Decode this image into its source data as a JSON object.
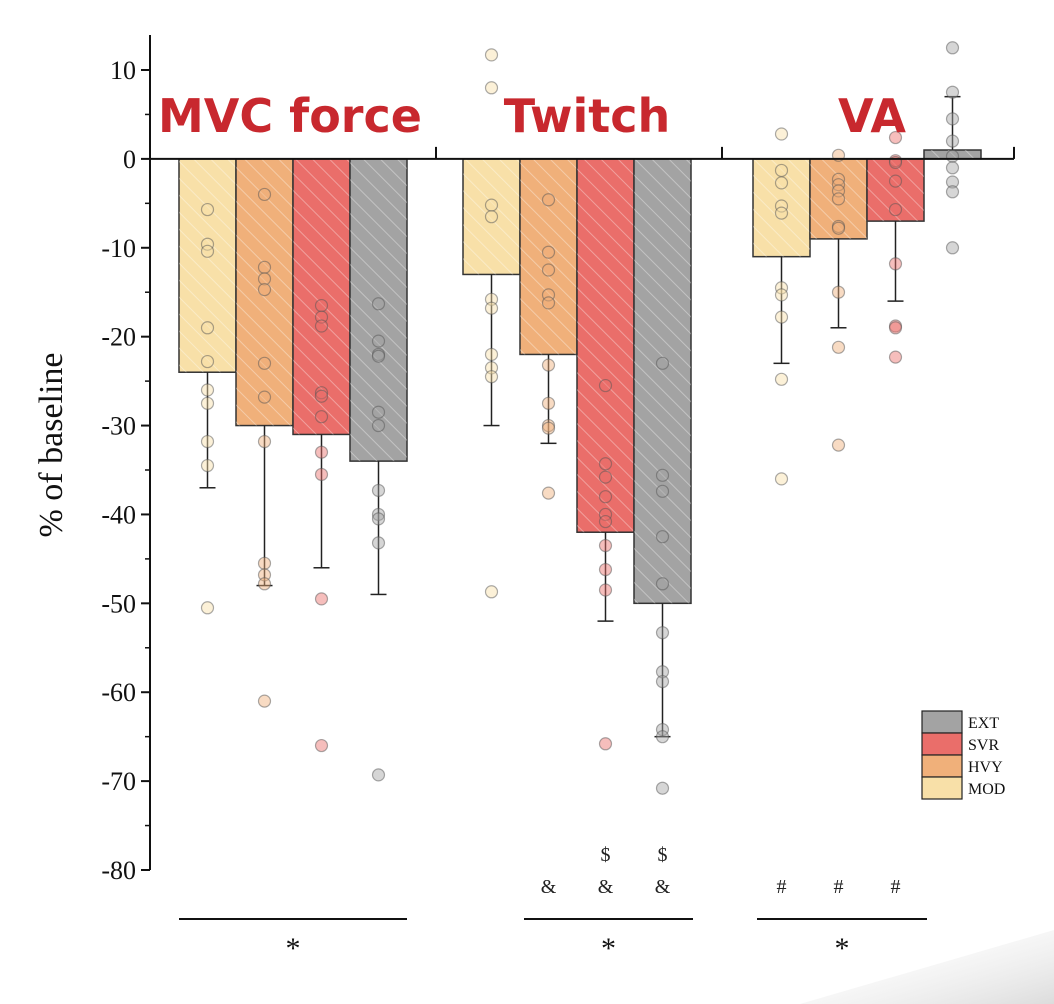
{
  "chart_data": {
    "type": "bar",
    "ylabel": "% of baseline",
    "xlabel": "",
    "ylim": [
      -80,
      13
    ],
    "yticks": [
      10,
      0,
      -10,
      -20,
      -30,
      -40,
      -50,
      -60,
      -70,
      -80
    ],
    "yticks_minor": [
      5,
      -5,
      -15,
      -25,
      -35,
      -45,
      -55,
      -65,
      -75
    ],
    "grid": false,
    "legend_placement": "bottom-right",
    "colors": {
      "MOD": "#f8e0a8",
      "HVY": "#f0b07a",
      "SVR": "#ea6e6a",
      "EXT": "#a3a3a3",
      "title": "#c8282e"
    },
    "legend": [
      "EXT",
      "SVR",
      "HVY",
      "MOD"
    ],
    "series_names": [
      "MOD",
      "HVY",
      "SVR",
      "EXT"
    ],
    "groups": [
      {
        "title": "MVC force",
        "bars": [
          {
            "series": "MOD",
            "mean": -24,
            "sd": 13,
            "marks": [],
            "points": [
              -5.7,
              -9.6,
              -10.4,
              -19,
              -22.8,
              -26,
              -27.5,
              -31.8,
              -34.5,
              -50.5
            ]
          },
          {
            "series": "HVY",
            "mean": -30,
            "sd": 18,
            "marks": [],
            "points": [
              -4,
              -12.2,
              -13.5,
              -14.7,
              -23,
              -26.8,
              -31.8,
              -45.5,
              -46.8,
              -47.8,
              -61
            ]
          },
          {
            "series": "SVR",
            "mean": -31,
            "sd": 15,
            "marks": [],
            "points": [
              -16.5,
              -17.8,
              -18.8,
              -26.3,
              -26.7,
              -29,
              -33,
              -35.5,
              -49.5,
              -66
            ]
          },
          {
            "series": "EXT",
            "mean": -34,
            "sd": 15,
            "marks": [],
            "points": [
              -16.3,
              -20.5,
              -22,
              -22.2,
              -28.5,
              -30,
              -37.3,
              -40,
              -40.5,
              -43.2,
              -69.3
            ]
          }
        ],
        "significance": "*"
      },
      {
        "title": "Twitch",
        "bars": [
          {
            "series": "MOD",
            "mean": -13,
            "sd": 17,
            "marks": [],
            "points": [
              11.7,
              8,
              -5.2,
              -6.5,
              -15.8,
              -16.8,
              -22,
              -23.5,
              -24.5,
              -48.7
            ]
          },
          {
            "series": "HVY",
            "mean": -22,
            "sd": 10,
            "marks": [
              "&"
            ],
            "points": [
              -4.6,
              -10.5,
              -12.5,
              -15.3,
              -16.2,
              -23.2,
              -27.5,
              -30,
              -30.3,
              -37.6
            ]
          },
          {
            "series": "SVR",
            "mean": -42,
            "sd": 10,
            "marks": [
              "$",
              "&"
            ],
            "points": [
              -25.5,
              -34.3,
              -35.8,
              -38,
              -40,
              -40.8,
              -43.5,
              -46.2,
              -48.5,
              -65.8
            ]
          },
          {
            "series": "EXT",
            "mean": -50,
            "sd": 15,
            "marks": [
              "$",
              "&"
            ],
            "points": [
              -23,
              -35.6,
              -37.4,
              -42.5,
              -47.8,
              -53.3,
              -57.7,
              -58.8,
              -64.2,
              -65,
              -70.8
            ]
          }
        ],
        "significance": "*"
      },
      {
        "title": "VA",
        "bars": [
          {
            "series": "MOD",
            "mean": -11,
            "sd": 12,
            "marks": [
              "#"
            ],
            "points": [
              2.8,
              -1.3,
              -2.7,
              -5.3,
              -6.1,
              -14.5,
              -15.3,
              -17.8,
              -24.8,
              -36
            ]
          },
          {
            "series": "HVY",
            "mean": -9,
            "sd": 10,
            "marks": [
              "#"
            ],
            "points": [
              0.4,
              -2.3,
              -2.9,
              -3.6,
              -4.5,
              -7.6,
              -7.8,
              -15,
              -21.2,
              -32.2
            ]
          },
          {
            "series": "SVR",
            "mean": -7,
            "sd": 9,
            "marks": [
              "#"
            ],
            "points": [
              2.4,
              -0.2,
              -0.4,
              -2.5,
              -5.7,
              -11.8,
              -18.8,
              -19,
              -22.3
            ]
          },
          {
            "series": "EXT",
            "mean": 1,
            "sd": 6,
            "marks": [],
            "points": [
              12.5,
              7.5,
              4.5,
              2,
              0.3,
              -1,
              -2.6,
              -3.7,
              -10
            ]
          }
        ],
        "significance": "*"
      }
    ]
  }
}
